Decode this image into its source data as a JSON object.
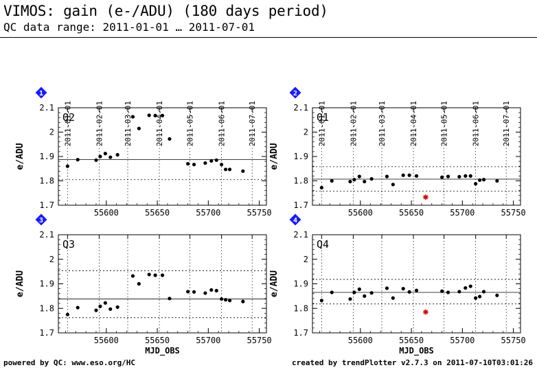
{
  "header": {
    "title": "VIMOS: gain (e-/ADU) (180 days period)",
    "subtitle": "QC data range: 2011-01-01 … 2011-07-01"
  },
  "footer": {
    "left": "powered by QC: www.eso.org/HC",
    "right": "created by trendPlotter v2.7.3 on 2011-07-10T03:01:26"
  },
  "colors": {
    "badge": "#1a1aff",
    "outlier": "#cc0000",
    "points": "#000000"
  },
  "chart_data": [
    {
      "type": "scatter",
      "panel_number": "1",
      "label": "Q2",
      "xlabel": "",
      "ylabel": "e/ADU",
      "xlim": [
        55553,
        55757
      ],
      "ylim": [
        1.7,
        2.1
      ],
      "xticks": [
        55600,
        55650,
        55700,
        55750
      ],
      "yticks": [
        1.7,
        1.8,
        1.9,
        2,
        2.1
      ],
      "top_axis_dates": [
        "2011-01-01",
        "2011-02-01",
        "2011-03-01",
        "2011-04-01",
        "2011-05-01",
        "2011-06-01",
        "2011-07-01"
      ],
      "top_axis_mjd": [
        55562,
        55593,
        55621,
        55652,
        55682,
        55713,
        55743
      ],
      "reference_line": 1.887,
      "threshold_lines": [
        1.805
      ],
      "grid": true,
      "points": [
        [
          55562,
          1.86
        ],
        [
          55572,
          1.887
        ],
        [
          55590,
          1.885
        ],
        [
          55594,
          1.9
        ],
        [
          55599,
          1.912
        ],
        [
          55604,
          1.897
        ],
        [
          55611,
          1.907
        ],
        [
          55626,
          2.063
        ],
        [
          55632,
          2.015
        ],
        [
          55642,
          2.069
        ],
        [
          55648,
          2.068
        ],
        [
          55655,
          2.068
        ],
        [
          55662,
          1.972
        ],
        [
          55680,
          1.87
        ],
        [
          55686,
          1.867
        ],
        [
          55697,
          1.873
        ],
        [
          55703,
          1.882
        ],
        [
          55708,
          1.885
        ],
        [
          55713,
          1.867
        ],
        [
          55717,
          1.847
        ],
        [
          55721,
          1.847
        ],
        [
          55734,
          1.84
        ]
      ],
      "outliers": []
    },
    {
      "type": "scatter",
      "panel_number": "2",
      "label": "Q1",
      "xlabel": "",
      "ylabel": "e/ADU",
      "xlim": [
        55553,
        55757
      ],
      "ylim": [
        1.7,
        2.1
      ],
      "xticks": [
        55600,
        55650,
        55700,
        55750
      ],
      "yticks": [
        1.7,
        1.8,
        1.9,
        2,
        2.1
      ],
      "top_axis_dates": [
        "2011-01-01",
        "2011-02-01",
        "2011-03-01",
        "2011-04-01",
        "2011-05-01",
        "2011-06-01",
        "2011-07-01"
      ],
      "top_axis_mjd": [
        55562,
        55593,
        55621,
        55652,
        55682,
        55713,
        55743
      ],
      "reference_line": 1.807,
      "threshold_lines": [
        1.858,
        1.758
      ],
      "grid": true,
      "points": [
        [
          55562,
          1.772
        ],
        [
          55572,
          1.8
        ],
        [
          55590,
          1.797
        ],
        [
          55594,
          1.805
        ],
        [
          55599,
          1.818
        ],
        [
          55604,
          1.797
        ],
        [
          55611,
          1.808
        ],
        [
          55626,
          1.818
        ],
        [
          55632,
          1.785
        ],
        [
          55642,
          1.823
        ],
        [
          55648,
          1.823
        ],
        [
          55655,
          1.82
        ],
        [
          55680,
          1.815
        ],
        [
          55686,
          1.818
        ],
        [
          55697,
          1.817
        ],
        [
          55703,
          1.82
        ],
        [
          55708,
          1.82
        ],
        [
          55713,
          1.788
        ],
        [
          55717,
          1.803
        ],
        [
          55721,
          1.805
        ],
        [
          55734,
          1.8
        ]
      ],
      "outliers": [
        [
          55664,
          1.733
        ]
      ]
    },
    {
      "type": "scatter",
      "panel_number": "3",
      "label": "Q3",
      "xlabel": "MJD_OBS",
      "ylabel": "e/ADU",
      "xlim": [
        55553,
        55757
      ],
      "ylim": [
        1.7,
        2.1
      ],
      "xticks": [
        55600,
        55650,
        55700,
        55750
      ],
      "yticks": [
        1.7,
        1.8,
        1.9,
        2,
        2.1
      ],
      "top_axis_dates": [],
      "top_axis_mjd": [
        55562,
        55593,
        55621,
        55652,
        55682,
        55713,
        55743
      ],
      "reference_line": 1.838,
      "threshold_lines": [
        1.953,
        1.762
      ],
      "grid": true,
      "points": [
        [
          55562,
          1.775
        ],
        [
          55572,
          1.803
        ],
        [
          55590,
          1.792
        ],
        [
          55594,
          1.808
        ],
        [
          55599,
          1.822
        ],
        [
          55604,
          1.797
        ],
        [
          55611,
          1.805
        ],
        [
          55626,
          1.932
        ],
        [
          55632,
          1.9
        ],
        [
          55642,
          1.938
        ],
        [
          55648,
          1.935
        ],
        [
          55655,
          1.935
        ],
        [
          55662,
          1.84
        ],
        [
          55680,
          1.868
        ],
        [
          55686,
          1.867
        ],
        [
          55697,
          1.862
        ],
        [
          55703,
          1.875
        ],
        [
          55708,
          1.872
        ],
        [
          55713,
          1.838
        ],
        [
          55717,
          1.835
        ],
        [
          55721,
          1.832
        ],
        [
          55734,
          1.828
        ]
      ],
      "outliers": []
    },
    {
      "type": "scatter",
      "panel_number": "4",
      "label": "Q4",
      "xlabel": "MJD_OBS",
      "ylabel": "e/ADU",
      "xlim": [
        55553,
        55757
      ],
      "ylim": [
        1.7,
        2.1
      ],
      "xticks": [
        55600,
        55650,
        55700,
        55750
      ],
      "yticks": [
        1.7,
        1.8,
        1.9,
        2,
        2.1
      ],
      "top_axis_dates": [],
      "top_axis_mjd": [
        55562,
        55593,
        55621,
        55652,
        55682,
        55713,
        55743
      ],
      "reference_line": 1.865,
      "threshold_lines": [
        1.918,
        1.818
      ],
      "grid": true,
      "points": [
        [
          55562,
          1.832
        ],
        [
          55572,
          1.865
        ],
        [
          55590,
          1.838
        ],
        [
          55594,
          1.865
        ],
        [
          55599,
          1.878
        ],
        [
          55604,
          1.85
        ],
        [
          55611,
          1.863
        ],
        [
          55626,
          1.882
        ],
        [
          55632,
          1.842
        ],
        [
          55642,
          1.88
        ],
        [
          55648,
          1.867
        ],
        [
          55655,
          1.873
        ],
        [
          55680,
          1.87
        ],
        [
          55686,
          1.865
        ],
        [
          55697,
          1.868
        ],
        [
          55703,
          1.883
        ],
        [
          55708,
          1.89
        ],
        [
          55713,
          1.842
        ],
        [
          55717,
          1.848
        ],
        [
          55721,
          1.868
        ],
        [
          55734,
          1.853
        ]
      ],
      "outliers": [
        [
          55664,
          1.785
        ]
      ]
    }
  ]
}
